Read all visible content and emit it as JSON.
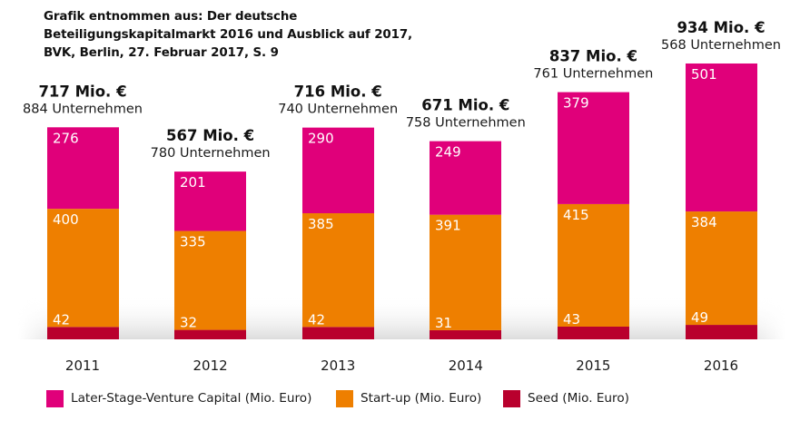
{
  "source_note": {
    "lines": [
      "Grafik entnommen aus: Der deutsche",
      "Beteiligungskapitalmarkt 2016 und Ausblick auf 2017,",
      "BVK, Berlin, 27. Februar 2017, S. 9"
    ]
  },
  "chart_data": {
    "type": "bar",
    "stacked": true,
    "title": "",
    "xlabel": "",
    "ylabel": "",
    "unit": "Mio. Euro",
    "categories": [
      "2011",
      "2012",
      "2013",
      "2014",
      "2015",
      "2016"
    ],
    "series": [
      {
        "name": "Seed (Mio. Euro)",
        "key": "seed",
        "color": "#B9002D",
        "values": [
          42,
          32,
          42,
          31,
          43,
          49
        ]
      },
      {
        "name": "Start-up (Mio. Euro)",
        "key": "startup",
        "color": "#EE7F00",
        "values": [
          400,
          335,
          385,
          391,
          415,
          384
        ]
      },
      {
        "name": "Later-Stage-Venture Capital (Mio. Euro)",
        "key": "later_stage",
        "color": "#E0007A",
        "values": [
          276,
          201,
          290,
          249,
          379,
          501
        ]
      }
    ],
    "totals": [
      {
        "amount": "717 Mio. €",
        "companies": "884 Unternehmen"
      },
      {
        "amount": "567 Mio. €",
        "companies": "780 Unternehmen"
      },
      {
        "amount": "716 Mio. €",
        "companies": "740 Unternehmen"
      },
      {
        "amount": "671 Mio. €",
        "companies": "758 Unternehmen"
      },
      {
        "amount": "837 Mio. €",
        "companies": "761 Unternehmen"
      },
      {
        "amount": "934 Mio. €",
        "companies": "568 Unternehmen"
      }
    ],
    "legend_order": [
      "later_stage",
      "startup",
      "seed"
    ],
    "legend_position": "bottom",
    "grid": false,
    "ylim": [
      0,
      934
    ]
  }
}
